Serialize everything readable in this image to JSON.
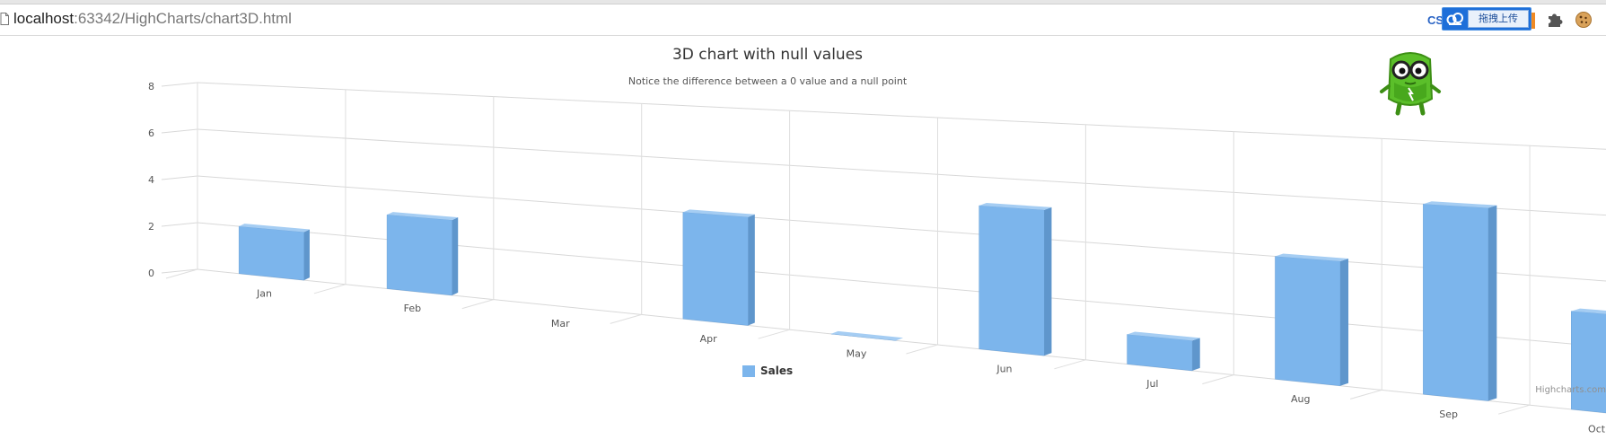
{
  "browser": {
    "url_host": "localhost",
    "url_rest": ":63342/HighCharts/chart3D.html",
    "extensions": {
      "cs_label": "CS",
      "upload_label": "拖拽上传"
    },
    "icons": [
      "page-icon",
      "cloud-icon",
      "puzzle-icon",
      "cookie-icon"
    ]
  },
  "chart": {
    "title": "3D chart with null values",
    "subtitle": "Notice the difference between a 0 value and a null point",
    "legend_label": "Sales",
    "credits": "Highcharts.com",
    "bar_color": "#7cb5ec"
  },
  "chart_data": {
    "type": "bar",
    "categories": [
      "Jan",
      "Feb",
      "Mar",
      "Apr",
      "May",
      "Jun",
      "Jul",
      "Aug",
      "Sep",
      "Oct"
    ],
    "series": [
      {
        "name": "Sales",
        "values": [
          2,
          3,
          null,
          4,
          0,
          5,
          1,
          4,
          6,
          3
        ]
      }
    ],
    "y_ticks": [
      0,
      2,
      4,
      6,
      8
    ],
    "ylim": [
      0,
      8
    ],
    "grid": true,
    "legend_position": "bottom-center",
    "view": "3d"
  }
}
